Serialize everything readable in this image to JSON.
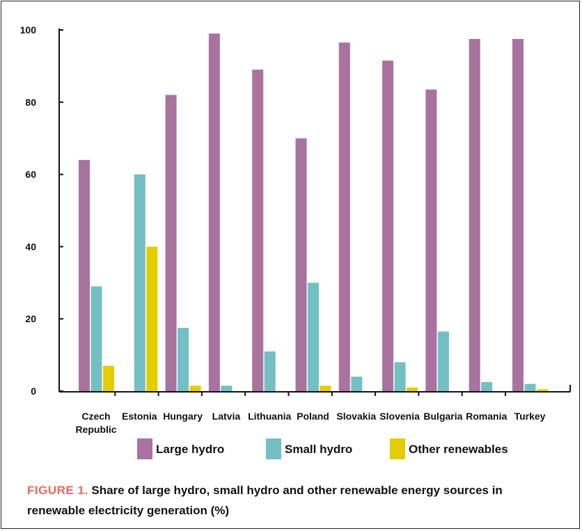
{
  "colors": {
    "large_hydro": "#a8739f",
    "small_hydro": "#74bfc3",
    "other_renewables": "#e5cc00",
    "axis": "#111111",
    "caption_label": "#e8685c"
  },
  "caption": {
    "label": "FIGURE 1.",
    "text": "Share of large hydro, small hydro and other renewable energy sources in renewable electricity generation (%)"
  },
  "chart_data": {
    "type": "bar",
    "title": "",
    "xlabel": "",
    "ylabel": "",
    "ylim": [
      0,
      100
    ],
    "yticks": [
      0,
      20,
      40,
      60,
      80,
      100
    ],
    "grid": false,
    "legend_position": "bottom",
    "categories": [
      [
        "Czech",
        "Republic"
      ],
      [
        "Estonia"
      ],
      [
        "Hungary"
      ],
      [
        "Latvia"
      ],
      [
        "Lithuania"
      ],
      [
        "Poland"
      ],
      [
        "Slovakia"
      ],
      [
        "Slovenia"
      ],
      [
        "Bulgaria"
      ],
      [
        "Romania"
      ],
      [
        "Turkey"
      ]
    ],
    "series": [
      {
        "name": "Large hydro",
        "color": "#a8739f",
        "values": [
          64,
          0,
          82,
          99,
          89,
          70,
          96.5,
          91.5,
          83.5,
          97.5,
          97.5
        ]
      },
      {
        "name": "Small hydro",
        "color": "#74bfc3",
        "values": [
          29,
          60,
          17.5,
          1.5,
          11,
          30,
          4,
          8,
          16.5,
          2.5,
          2
        ]
      },
      {
        "name": "Other renewables",
        "color": "#e5cc00",
        "values": [
          7,
          40,
          1.5,
          0,
          0,
          1.5,
          0,
          1,
          0,
          0,
          0.5
        ]
      }
    ]
  }
}
